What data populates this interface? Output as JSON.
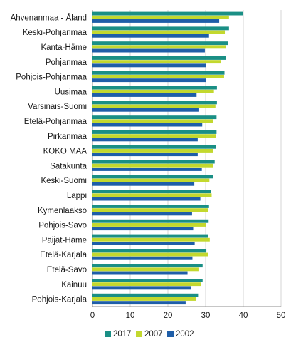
{
  "chart_data": {
    "type": "bar",
    "orientation": "horizontal",
    "categories": [
      "Ahvenanmaa - Åland",
      "Keski-Pohjanmaa",
      "Kanta-Häme",
      "Pohjanmaa",
      "Pohjois-Pohjanmaa",
      "Uusimaa",
      "Varsinais-Suomi",
      "Etelä-Pohjanmaa",
      "Pirkanmaa",
      "KOKO MAA",
      "Satakunta",
      "Keski-Suomi",
      "Lappi",
      "Kymenlaakso",
      "Pohjois-Savo",
      "Päijät-Häme",
      "Etelä-Karjala",
      "Etelä-Savo",
      "Kainuu",
      "Pohjois-Karjala"
    ],
    "series": [
      {
        "name": "2017",
        "color": "#1a8f85",
        "values": [
          40.0,
          36.2,
          36.0,
          35.4,
          35.0,
          33.0,
          33.0,
          32.9,
          32.9,
          32.7,
          32.4,
          31.9,
          31.4,
          30.9,
          30.8,
          30.7,
          30.2,
          29.2,
          29.2,
          28.0
        ]
      },
      {
        "name": "2007",
        "color": "#c3d82e",
        "values": [
          36.2,
          35.1,
          35.3,
          34.1,
          34.9,
          32.2,
          32.6,
          31.9,
          32.7,
          32.0,
          31.9,
          31.0,
          31.6,
          30.6,
          30.0,
          31.1,
          30.6,
          28.1,
          28.8,
          27.4
        ]
      },
      {
        "name": "2002",
        "color": "#1f5ea8",
        "values": [
          33.6,
          30.9,
          29.8,
          30.1,
          30.1,
          27.6,
          28.1,
          29.1,
          27.9,
          27.9,
          29.0,
          27.0,
          28.6,
          26.4,
          26.7,
          27.1,
          26.5,
          25.2,
          26.2,
          24.7
        ]
      }
    ],
    "x_ticks": [
      "0",
      "10",
      "20",
      "30",
      "40",
      "50"
    ],
    "xlim": [
      0,
      50
    ],
    "legend_position": "bottom",
    "grid": "vertical"
  }
}
